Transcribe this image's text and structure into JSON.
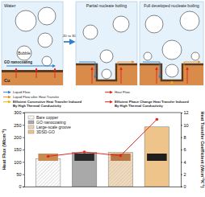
{
  "diagram": {
    "labels": {
      "water": "Water",
      "bubble": "Bubble",
      "go": "GO nanocoating",
      "cu": "Cu"
    },
    "transition": "2D to 3D",
    "panels": [
      "Partial nucleate boiling",
      "Full developed nucleate boiling"
    ],
    "legend": [
      {
        "text": [
          "Liquid Flow"
        ]
      },
      {
        "text": [
          "Heat Flow"
        ]
      },
      {
        "text": [
          "Liquid Flow after Heat Transfer"
        ]
      },
      {
        "text": [
          "Efficient Convective Heat Transfer Induced",
          "By High Thermal Conductivity"
        ]
      },
      {
        "text": [
          "Efficient Phase Change Heat Transfer Induced",
          "By High Thermal Conductivity"
        ]
      }
    ]
  },
  "chart_data": {
    "type": "bar",
    "categories": [
      null,
      null,
      null,
      null
    ],
    "y_label": "Heat Flux (Wcm⁻²)",
    "y2_label": "Heat Transfer Coefficient (Wcm⁻²K⁻¹)",
    "ylim": [
      0,
      300
    ],
    "yticks": [
      0,
      50,
      100,
      150,
      200,
      250,
      300
    ],
    "y2lim": [
      0,
      12
    ],
    "y2ticks": [
      0,
      2,
      4,
      6,
      8,
      10,
      12
    ],
    "legend": "top-left",
    "series": [
      {
        "name": "Bare copper",
        "type": "bar",
        "color": "#ffffff",
        "values": [
          112,
          null,
          null,
          null
        ]
      },
      {
        "name": "GO nanocoating",
        "type": "bar",
        "color": "#a9a9a9",
        "values": [
          null,
          138,
          null,
          null
        ]
      },
      {
        "name": "Large-scale groove",
        "type": "bar",
        "color": "#f3dcbc",
        "values": [
          null,
          null,
          138,
          null
        ]
      },
      {
        "name": "3DSD-GO",
        "type": "bar",
        "color": "#efc48a",
        "values": [
          null,
          null,
          null,
          242
        ]
      },
      {
        "type": "line",
        "axis": "y2",
        "color": "#e8251f",
        "marker": "circle",
        "values": [
          4.9,
          5.6,
          5.0,
          10.9
        ]
      }
    ]
  }
}
